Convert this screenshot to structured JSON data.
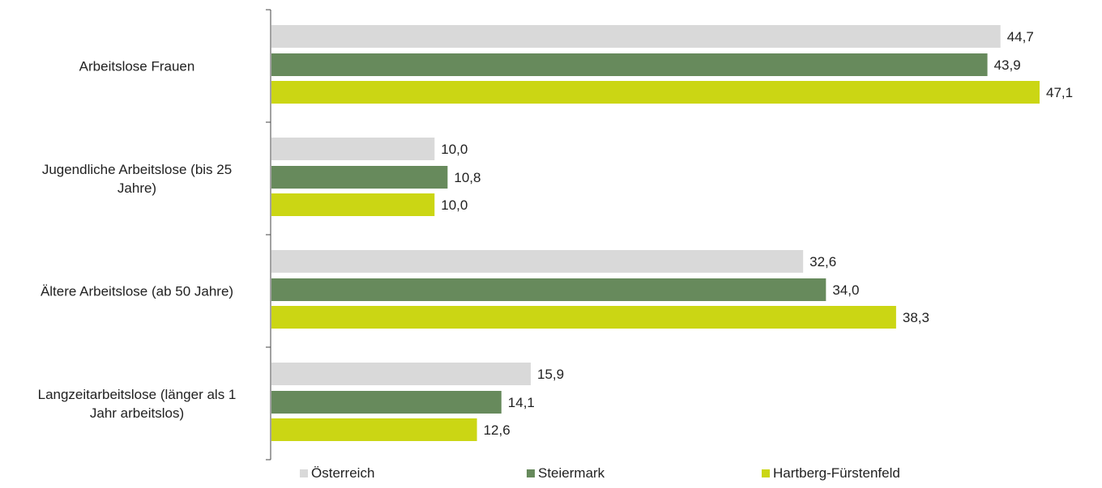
{
  "chart_data": {
    "type": "bar",
    "orientation": "horizontal",
    "categories": [
      "Arbeitslose Frauen",
      "Jugendliche Arbeitslose (bis 25 Jahre)",
      "Ältere Arbeitslose (ab 50 Jahre)",
      "Langzeitarbeitslose (länger als 1 Jahr arbeitslos)"
    ],
    "category_lines": [
      [
        "Arbeitslose Frauen"
      ],
      [
        "Jugendliche Arbeitslose (bis 25",
        "Jahre)"
      ],
      [
        "Ältere Arbeitslose (ab 50 Jahre)"
      ],
      [
        "Langzeitarbeitslose (länger als 1",
        "Jahr arbeitslos)"
      ]
    ],
    "series": [
      {
        "name": "Österreich",
        "color": "#d9d9d9",
        "values": [
          44.7,
          10.0,
          32.6,
          15.9
        ],
        "labels": [
          "44,7",
          "10,0",
          "32,6",
          "15,9"
        ]
      },
      {
        "name": "Steiermark",
        "color": "#678a5c",
        "values": [
          43.9,
          10.8,
          34.0,
          14.1
        ],
        "labels": [
          "43,9",
          "10,8",
          "34,0",
          "14,1"
        ]
      },
      {
        "name": "Hartberg-Fürstenfeld",
        "color": "#cbd614",
        "values": [
          47.1,
          10.0,
          38.3,
          12.6
        ],
        "labels": [
          "47,1",
          "10,0",
          "38,3",
          "12,6"
        ]
      }
    ],
    "title": "",
    "xlabel": "",
    "ylabel": "",
    "xlim": [
      0,
      50
    ],
    "grid": false,
    "legend_position": "bottom"
  }
}
